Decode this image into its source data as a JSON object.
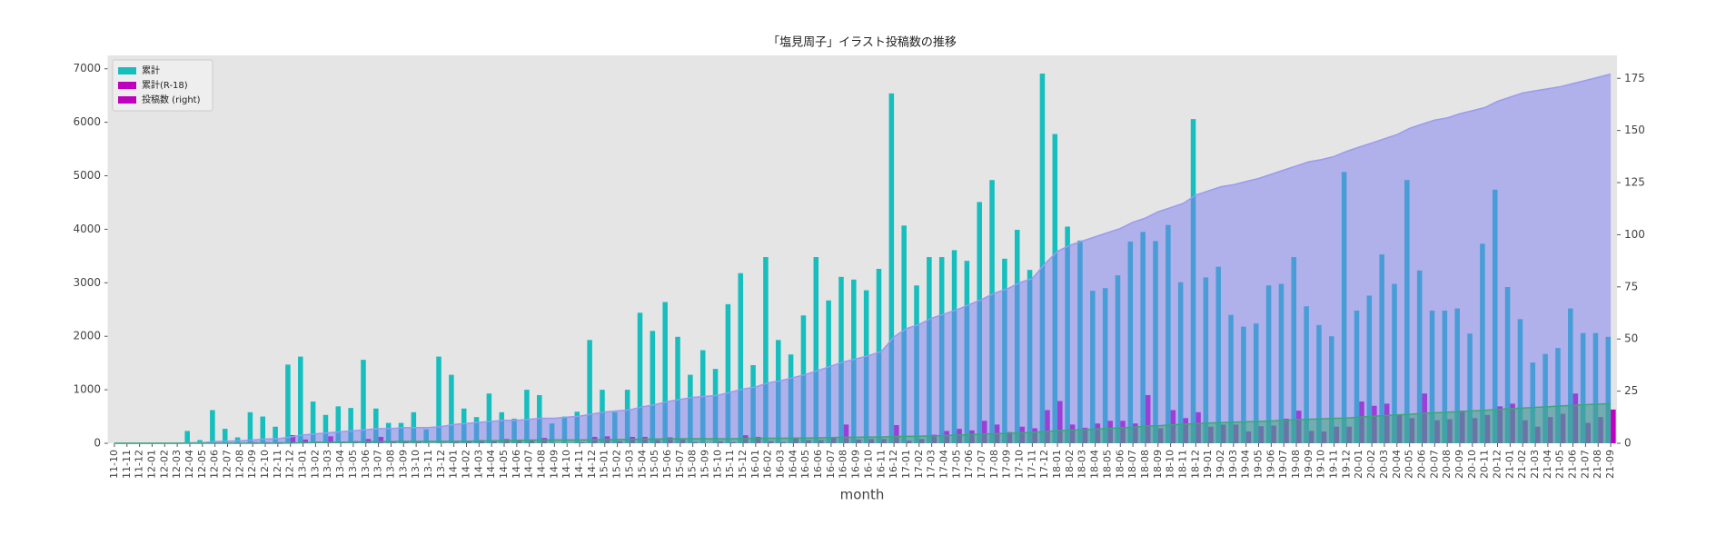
{
  "chart_data": {
    "type": "bar",
    "title": "「塩見周子」イラスト投稿数の推移",
    "xlabel": "month",
    "background": "#e5e5e5",
    "grid": false,
    "legend": "upper left",
    "categories": [
      "11-10",
      "11-11",
      "11-12",
      "12-01",
      "12-02",
      "12-03",
      "12-04",
      "12-05",
      "12-06",
      "12-07",
      "12-08",
      "12-09",
      "12-10",
      "12-11",
      "12-12",
      "13-01",
      "13-02",
      "13-03",
      "13-04",
      "13-05",
      "13-06",
      "13-07",
      "13-08",
      "13-09",
      "13-10",
      "13-11",
      "13-12",
      "14-01",
      "14-02",
      "14-03",
      "14-04",
      "14-05",
      "14-06",
      "14-07",
      "14-08",
      "14-09",
      "14-10",
      "14-11",
      "14-12",
      "15-01",
      "15-02",
      "15-03",
      "15-04",
      "15-05",
      "15-06",
      "15-07",
      "15-08",
      "15-09",
      "15-10",
      "15-11",
      "15-12",
      "16-01",
      "16-02",
      "16-03",
      "16-04",
      "16-05",
      "16-06",
      "16-07",
      "16-08",
      "16-09",
      "16-10",
      "16-11",
      "16-12",
      "17-01",
      "17-02",
      "17-03",
      "17-04",
      "17-05",
      "17-06",
      "17-07",
      "17-08",
      "17-09",
      "17-10",
      "17-11",
      "17-12",
      "18-01",
      "18-02",
      "18-03",
      "18-04",
      "18-05",
      "18-06",
      "18-07",
      "18-08",
      "18-09",
      "18-10",
      "18-11",
      "18-12",
      "19-01",
      "19-02",
      "19-03",
      "19-04",
      "19-05",
      "19-06",
      "19-07",
      "19-08",
      "19-09",
      "19-10",
      "19-11",
      "19-12",
      "20-01",
      "20-02",
      "20-03",
      "20-04",
      "20-05",
      "20-06",
      "20-07",
      "20-08",
      "20-09",
      "20-10",
      "20-11",
      "20-12",
      "21-01",
      "21-02",
      "21-03",
      "21-04",
      "21-05",
      "21-06",
      "21-07",
      "21-08",
      "21-09"
    ],
    "ylim": [
      0,
      7250
    ],
    "yticks": [
      0,
      1000,
      2000,
      3000,
      4000,
      5000,
      6000,
      7000
    ],
    "y2lim": [
      0,
      186
    ],
    "y2ticks": [
      0,
      25,
      50,
      75,
      100,
      125,
      150,
      175
    ],
    "series": [
      {
        "name": "累計",
        "kind": "bar",
        "color": "#17bebe",
        "values": [
          0,
          0,
          0,
          0,
          0,
          0,
          230,
          60,
          620,
          270,
          110,
          580,
          500,
          310,
          1470,
          1620,
          780,
          530,
          690,
          660,
          1560,
          650,
          380,
          380,
          580,
          260,
          1620,
          1280,
          650,
          490,
          930,
          580,
          460,
          1000,
          900,
          370,
          500,
          590,
          1930,
          1000,
          580,
          1000,
          2440,
          2100,
          2640,
          1990,
          1280,
          1740,
          1390,
          2600,
          3180,
          1460,
          3480,
          1930,
          1660,
          2390,
          3480,
          2670,
          3110,
          3060,
          2860,
          3260,
          6540,
          4070,
          2950,
          3480,
          3480,
          3610,
          3410,
          4510,
          4920,
          3450,
          3990,
          3240,
          6910,
          5780,
          4050,
          3790,
          2850,
          2900,
          3140,
          3770,
          3950,
          3780,
          4080,
          3010,
          6060,
          3100,
          3300,
          2400,
          2180,
          2240,
          2950,
          2980,
          3480,
          2560,
          2210,
          2000,
          5070,
          2480,
          2760,
          3530,
          2980,
          4920,
          3230,
          2480,
          2480,
          2520,
          2050,
          3730,
          4740,
          2920,
          2320,
          1510,
          1670,
          1780,
          2520,
          2060,
          2060,
          1990
        ]
      },
      {
        "name": "累計(R-18)",
        "kind": "bar",
        "color": "#bf00bf",
        "values": [
          0,
          0,
          0,
          0,
          0,
          0,
          0,
          0,
          10,
          0,
          0,
          20,
          20,
          20,
          150,
          70,
          30,
          130,
          20,
          40,
          80,
          120,
          20,
          30,
          20,
          0,
          10,
          20,
          30,
          60,
          60,
          80,
          60,
          70,
          100,
          0,
          0,
          20,
          120,
          130,
          40,
          120,
          120,
          60,
          110,
          70,
          20,
          0,
          40,
          20,
          150,
          120,
          40,
          20,
          110,
          60,
          60,
          100,
          350,
          70,
          80,
          80,
          340,
          50,
          80,
          160,
          230,
          270,
          240,
          420,
          350,
          210,
          310,
          280,
          620,
          790,
          350,
          290,
          370,
          420,
          420,
          370,
          900,
          280,
          620,
          470,
          580,
          310,
          350,
          350,
          220,
          320,
          330,
          460,
          610,
          230,
          220,
          310,
          310,
          780,
          700,
          740,
          530,
          470,
          930,
          430,
          450,
          610,
          470,
          530,
          690,
          740,
          430,
          310,
          490,
          550,
          930,
          380,
          490,
          630
        ]
      },
      {
        "name": "投稿数 (right)",
        "kind": "area",
        "axis": "y2",
        "color": "#bf00bf",
        "fill": "#7b7bf0",
        "stroke": "#9a9af0",
        "values": [
          0,
          0,
          0,
          0,
          0,
          0,
          0.2,
          0.3,
          0.8,
          1,
          1.2,
          1.6,
          2,
          2.2,
          3,
          4,
          4.5,
          5,
          5.5,
          6,
          6.5,
          7,
          7,
          7.5,
          7.5,
          7.5,
          8,
          9,
          9.5,
          10,
          10.5,
          11,
          11,
          11.5,
          12,
          12,
          12.5,
          13,
          14,
          15,
          15.5,
          16,
          17.5,
          18.5,
          20,
          21,
          22,
          22.5,
          23,
          24.5,
          26,
          27,
          29,
          30,
          31.5,
          33,
          35,
          37,
          39,
          40.5,
          42,
          44,
          51,
          55,
          57,
          60,
          62,
          64,
          66.5,
          69,
          72,
          74,
          77,
          79,
          86,
          92,
          95,
          97,
          99,
          101,
          103,
          106,
          108,
          111,
          113,
          115,
          119,
          121,
          123,
          124,
          125.5,
          127,
          129,
          131,
          133,
          135,
          136,
          137.5,
          140,
          142,
          144,
          146,
          148,
          151,
          153,
          155,
          156,
          158,
          159.5,
          161,
          164,
          166,
          168,
          169,
          170,
          171,
          172.5,
          174,
          175.5,
          177
        ]
      },
      {
        "kind": "area",
        "axis": "y2",
        "color": "#3aa878",
        "fill": "#3aa878",
        "stroke": "#3aa878",
        "values": [
          0,
          0,
          0,
          0,
          0,
          0,
          0,
          0,
          0,
          0,
          0,
          0,
          0,
          0,
          0.1,
          0.2,
          0.3,
          0.5,
          0.5,
          0.6,
          0.7,
          0.8,
          0.8,
          0.9,
          0.9,
          0.9,
          0.9,
          1,
          1,
          1.1,
          1.2,
          1.3,
          1.4,
          1.5,
          1.6,
          1.6,
          1.6,
          1.6,
          1.7,
          1.8,
          1.8,
          1.9,
          2,
          2,
          2.1,
          2.2,
          2.2,
          2.2,
          2.2,
          2.2,
          2.3,
          2.4,
          2.4,
          2.4,
          2.5,
          2.5,
          2.6,
          2.7,
          2.9,
          2.9,
          3,
          3,
          3.2,
          3.3,
          3.4,
          3.5,
          3.7,
          3.9,
          4.1,
          4.4,
          4.6,
          4.8,
          5,
          5.2,
          5.6,
          6,
          6.3,
          6.5,
          6.8,
          7.1,
          7.4,
          7.7,
          8.2,
          8.4,
          8.8,
          9.1,
          9.4,
          9.7,
          9.9,
          10.1,
          10.3,
          10.5,
          10.7,
          11,
          11.3,
          11.5,
          11.7,
          11.9,
          12.1,
          12.5,
          12.9,
          13.3,
          13.6,
          13.9,
          14.3,
          14.6,
          14.9,
          15.2,
          15.5,
          15.8,
          16.2,
          16.6,
          16.9,
          17.2,
          17.5,
          17.9,
          18.2,
          18.5,
          18.8,
          19
        ]
      }
    ]
  }
}
